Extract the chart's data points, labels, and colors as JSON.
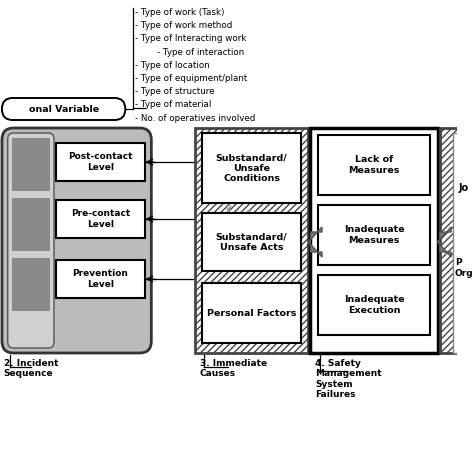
{
  "bg_color": "#ffffff",
  "text_color": "#000000",
  "bullet_lines": [
    "- Type of work (Task)",
    "- Type of work method",
    "- Type of Interacting work",
    "        - Type of interaction",
    "- Type of location",
    "- Type of equipment/plant",
    "- Type of structure",
    "- Type of material",
    "- No. of operatives involved"
  ],
  "personal_variable_label": "onal Variable",
  "incident_boxes": [
    "Post-contact\nLevel",
    "Pre-contact\nLevel",
    "Prevention\nLevel"
  ],
  "incident_label": "2. Incident\nSequence",
  "immediate_boxes": [
    "Substandard/\nUnsafe\nConditions",
    "Substandard/\nUnsafe Acts",
    "Personal Factors"
  ],
  "immediate_label": "3. Immediate\nCauses",
  "sms_boxes": [
    "Lack of\nMeasures",
    "Inadequate\nMeasures",
    "Inadequate\nExecution"
  ],
  "sms_label": "4. Safety\nManagement\nSystem\nFailures",
  "right_label1": "Jo",
  "right_label2": "P\nOrg"
}
